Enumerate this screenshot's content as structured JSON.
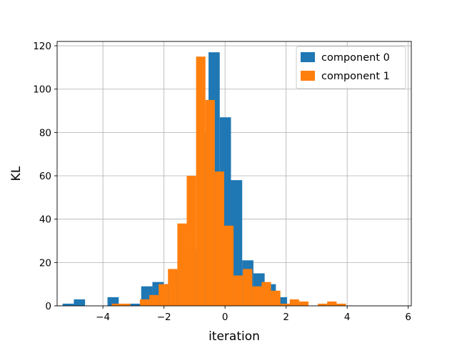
{
  "chart_data": {
    "type": "bar",
    "subtype": "histogram",
    "xlabel": "iteration",
    "ylabel": "KL",
    "xlim": [
      -5.5,
      6.1
    ],
    "ylim": [
      0,
      122
    ],
    "xticks": [
      -4,
      -2,
      0,
      2,
      4,
      6
    ],
    "yticks": [
      0,
      20,
      40,
      60,
      80,
      100,
      120
    ],
    "grid": true,
    "legend_position": "top-right",
    "series": [
      {
        "name": "component 0",
        "color": "#1f77b4",
        "bin_start": -5.32,
        "bin_width": 0.3676,
        "counts": [
          1,
          3,
          0,
          0,
          4,
          0,
          1,
          9,
          11,
          10,
          16,
          26,
          80,
          117,
          87,
          58,
          21,
          15,
          10,
          4,
          1,
          0,
          0,
          0,
          0,
          0,
          0,
          0,
          0,
          0
        ]
      },
      {
        "name": "component 1",
        "color": "#ff7f0e",
        "bin_start": -3.71,
        "bin_width": 0.3068,
        "counts": [
          1,
          1,
          0,
          3,
          5,
          10,
          17,
          38,
          60,
          115,
          95,
          62,
          37,
          14,
          17,
          9,
          11,
          7,
          1,
          3,
          2,
          0,
          1,
          2,
          1
        ]
      }
    ]
  }
}
